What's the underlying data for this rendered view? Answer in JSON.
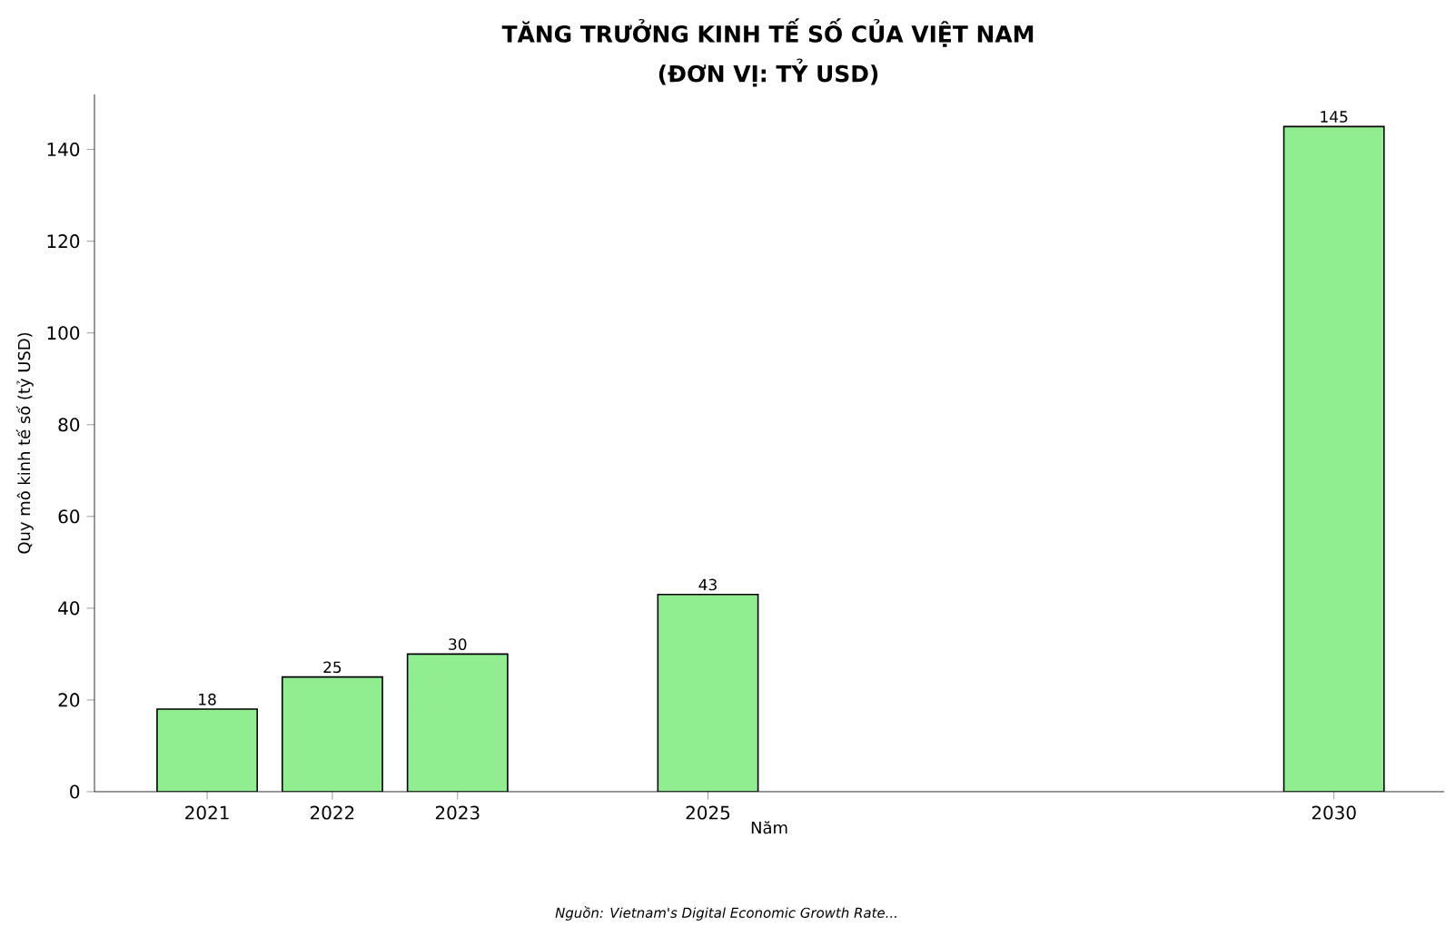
{
  "chart_data": {
    "type": "bar",
    "title": "TĂNG TRƯỞNG KINH TẾ SỐ CỦA VIỆT NAM",
    "subtitle": "(ĐƠN VỊ: TỶ USD)",
    "xlabel": "Năm",
    "ylabel": "Quy mô kinh tế số (tỷ USD)",
    "x": [
      2021,
      2022,
      2023,
      2025,
      2030
    ],
    "values": [
      18,
      25,
      30,
      43,
      145
    ],
    "color": "#90ee90",
    "xlim": [
      2020.1,
      2030.88
    ],
    "xticks": [
      2021,
      2022,
      2023,
      2025,
      2030
    ],
    "ylim": [
      0,
      152
    ],
    "yticks": [
      0,
      20,
      40,
      60,
      80,
      100,
      120,
      140
    ],
    "data_labels": true,
    "annotations": [
      "Nguồn: Vietnam's Digital Economic Growth Rate..."
    ]
  }
}
